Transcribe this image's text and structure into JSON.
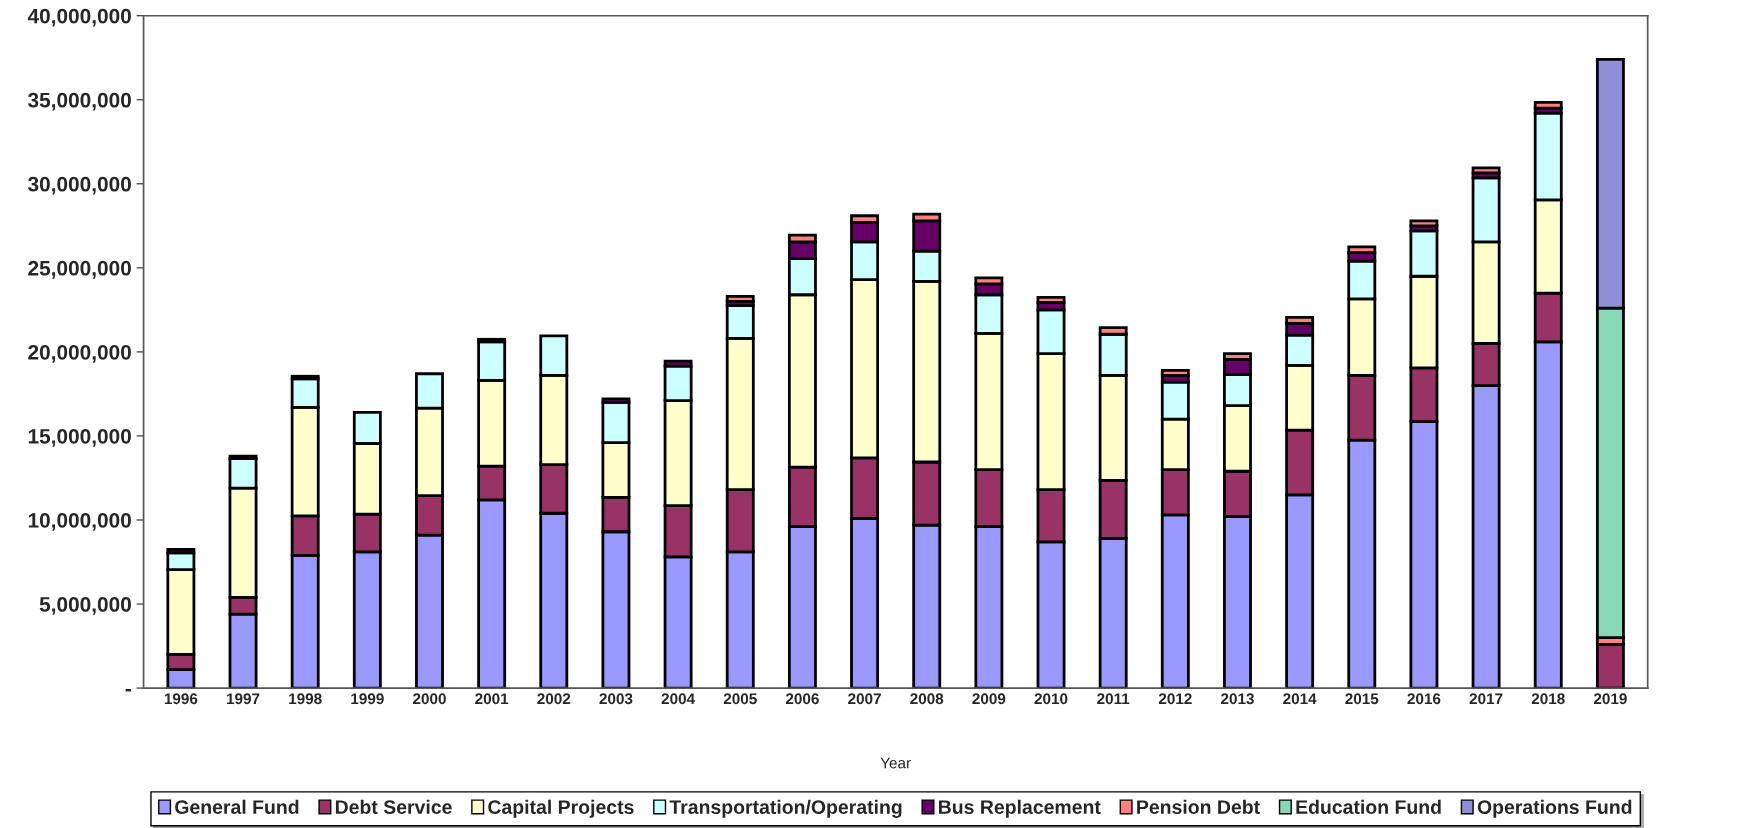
{
  "chart_data": {
    "type": "bar",
    "stacked": true,
    "xlabel": "Year",
    "categories": [
      "1996",
      "1997",
      "1998",
      "1999",
      "2000",
      "2001",
      "2002",
      "2003",
      "2004",
      "2005",
      "2006",
      "2007",
      "2008",
      "2009",
      "2010",
      "2011",
      "2012",
      "2013",
      "2014",
      "2015",
      "2016",
      "2017",
      "2018",
      "2019"
    ],
    "series": [
      {
        "name": "General Fund",
        "color": "#9999ff",
        "values": [
          1100000,
          4400000,
          7900000,
          8100000,
          9100000,
          11200000,
          10400000,
          9300000,
          7800000,
          8100000,
          9600000,
          10100000,
          9700000,
          9600000,
          8700000,
          8900000,
          10300000,
          10200000,
          11500000,
          14750000,
          15850000,
          18000000,
          20600000,
          null
        ]
      },
      {
        "name": "Debt Service",
        "color": "#993366",
        "values": [
          900000,
          1000000,
          2350000,
          2250000,
          2350000,
          2000000,
          2900000,
          2050000,
          3050000,
          3700000,
          3550000,
          3600000,
          3750000,
          3400000,
          3100000,
          3450000,
          2700000,
          2700000,
          3850000,
          3850000,
          3200000,
          2500000,
          2900000,
          2600000
        ]
      },
      {
        "name": "Capital Projects",
        "color": "#ffffcc",
        "values": [
          5050000,
          6500000,
          6450000,
          4200000,
          5200000,
          5100000,
          5300000,
          3250000,
          6250000,
          9000000,
          10250000,
          10600000,
          10750000,
          8100000,
          8100000,
          6250000,
          3000000,
          3900000,
          3850000,
          4550000,
          5450000,
          6050000,
          5550000,
          null
        ]
      },
      {
        "name": "Transportation/Operating",
        "color": "#ccffff",
        "values": [
          1000000,
          1750000,
          1700000,
          1850000,
          2050000,
          2300000,
          2350000,
          2400000,
          2050000,
          1950000,
          2150000,
          2250000,
          1800000,
          2300000,
          2600000,
          2450000,
          2200000,
          1850000,
          1800000,
          2250000,
          2700000,
          3800000,
          5150000,
          null
        ]
      },
      {
        "name": "Bus Replacement",
        "color": "#660066",
        "values": [
          200000,
          150000,
          150000,
          null,
          null,
          150000,
          null,
          200000,
          300000,
          250000,
          1000000,
          1150000,
          1800000,
          650000,
          450000,
          null,
          400000,
          900000,
          700000,
          500000,
          300000,
          300000,
          300000,
          null
        ]
      },
      {
        "name": "Pension Debt",
        "color": "#ff8080",
        "values": [
          null,
          null,
          null,
          null,
          null,
          null,
          null,
          null,
          null,
          300000,
          400000,
          400000,
          400000,
          350000,
          300000,
          400000,
          300000,
          350000,
          350000,
          350000,
          300000,
          300000,
          350000,
          400000
        ]
      },
      {
        "name": "Education Fund",
        "color": "#87d9b8",
        "values": [
          null,
          null,
          null,
          null,
          null,
          null,
          null,
          null,
          null,
          null,
          null,
          null,
          null,
          null,
          null,
          null,
          null,
          null,
          null,
          null,
          null,
          null,
          null,
          19600000
        ]
      },
      {
        "name": "Operations Fund",
        "color": "#8e8ed9",
        "values": [
          null,
          null,
          null,
          null,
          null,
          null,
          null,
          null,
          null,
          null,
          null,
          null,
          null,
          null,
          null,
          null,
          null,
          null,
          null,
          null,
          null,
          null,
          null,
          14800000
        ]
      }
    ],
    "ylim": [
      0,
      40000000
    ],
    "yticks": [
      {
        "value": 0,
        "label": "-"
      },
      {
        "value": 5000000,
        "label": "5,000,000"
      },
      {
        "value": 10000000,
        "label": "10,000,000"
      },
      {
        "value": 15000000,
        "label": "15,000,000"
      },
      {
        "value": 20000000,
        "label": "20,000,000"
      },
      {
        "value": 25000000,
        "label": "25,000,000"
      },
      {
        "value": 30000000,
        "label": "30,000,000"
      },
      {
        "value": 35000000,
        "label": "35,000,000"
      },
      {
        "value": 40000000,
        "label": "40,000,000"
      }
    ],
    "grid": false,
    "legend": "bottom"
  }
}
